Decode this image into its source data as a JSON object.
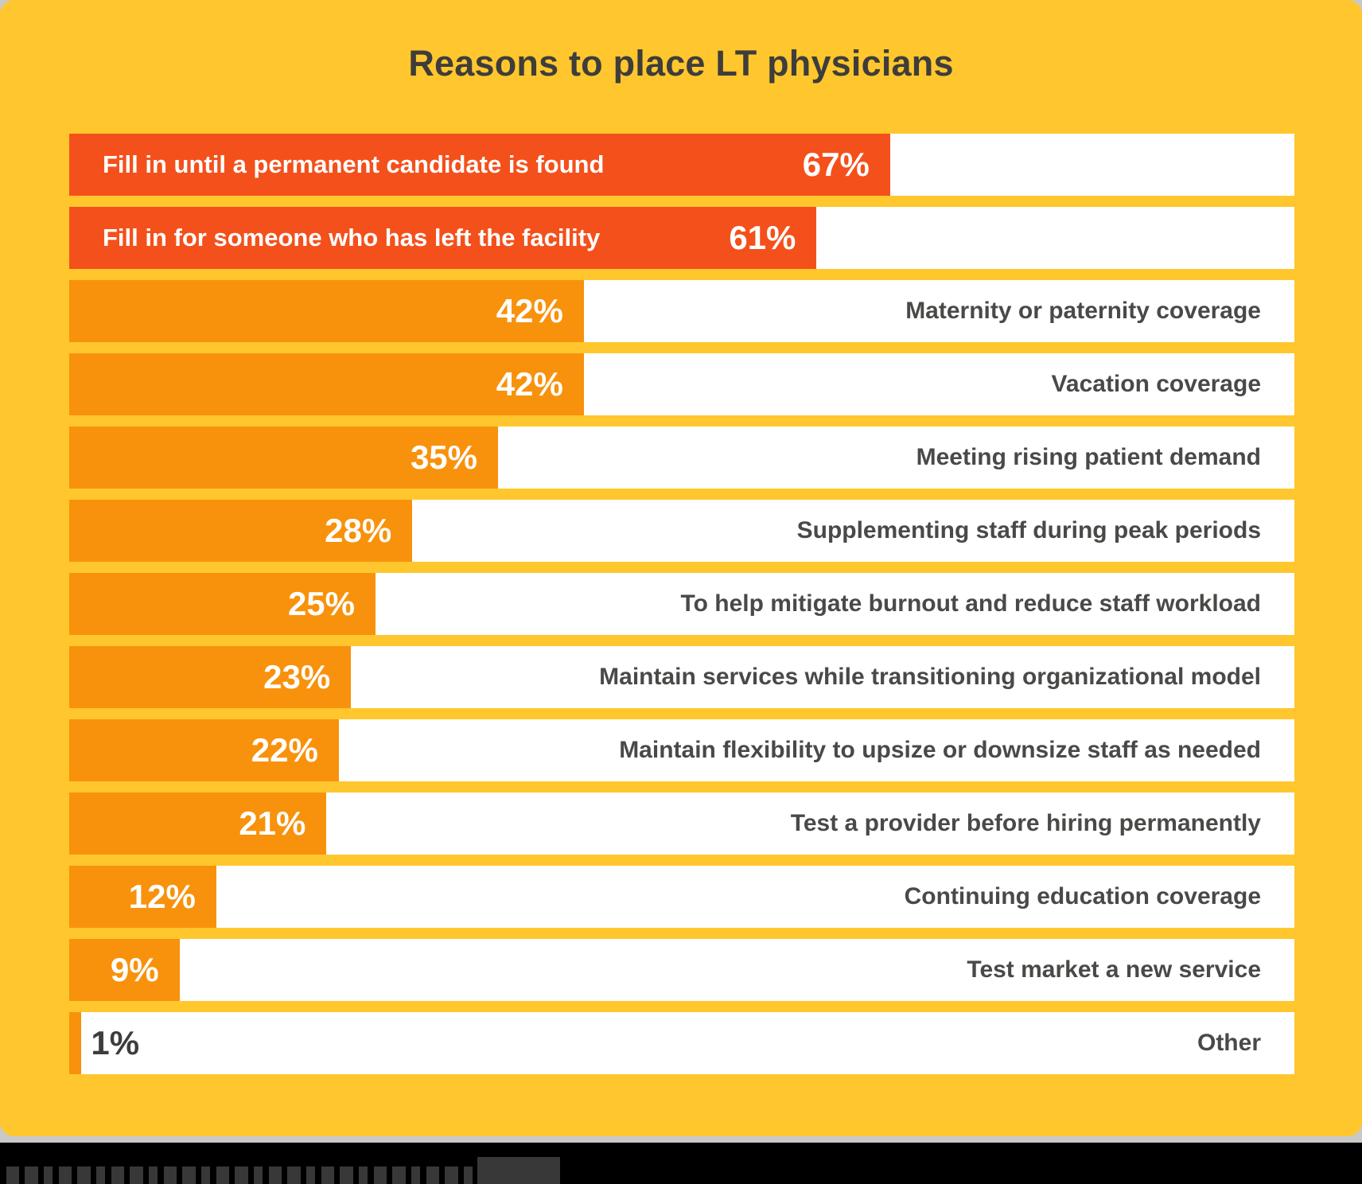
{
  "colors": {
    "page_background": "#c9c9c9",
    "card_background": "#ffc72d",
    "bar_highlight": "#f4501b",
    "bar_default": "#f8920c",
    "bar_track": "#ffffff",
    "value_text_on_bar": "#ffffff",
    "value_text_dark": "#3e3d3b",
    "category_text": "#4a4947",
    "title_text": "#3e3d3b",
    "footer_background": "#000000"
  },
  "chart_data": {
    "type": "bar",
    "orientation": "horizontal",
    "title": "Reasons to place LT physicians",
    "value_unit": "%",
    "xlim": [
      0,
      100
    ],
    "grid": false,
    "legend": false,
    "categories": [
      "Fill in until a permanent candidate is found",
      "Fill in for someone who has left the facility",
      "Maternity or paternity coverage",
      "Vacation coverage",
      "Meeting rising patient demand",
      "Supplementing staff during peak periods",
      "To help mitigate burnout and reduce staff workload",
      "Maintain services while transitioning organizational model",
      "Maintain flexibility to upsize or downsize staff as needed",
      "Test a provider before hiring permanently",
      "Continuing education coverage",
      "Test market a new service",
      "Other"
    ],
    "values": [
      67,
      61,
      42,
      42,
      35,
      28,
      25,
      23,
      22,
      21,
      12,
      9,
      1
    ],
    "rows": [
      {
        "label": "Fill in until a permanent candidate is found",
        "value": 67,
        "color": "bar_highlight",
        "label_placement": "inside-bar",
        "value_placement": "inside-bar"
      },
      {
        "label": "Fill in for someone who has left the facility",
        "value": 61,
        "color": "bar_highlight",
        "label_placement": "inside-bar",
        "value_placement": "inside-bar"
      },
      {
        "label": "Maternity or paternity coverage",
        "value": 42,
        "color": "bar_default",
        "label_placement": "right",
        "value_placement": "inside-bar"
      },
      {
        "label": "Vacation coverage",
        "value": 42,
        "color": "bar_default",
        "label_placement": "right",
        "value_placement": "inside-bar"
      },
      {
        "label": "Meeting rising patient demand",
        "value": 35,
        "color": "bar_default",
        "label_placement": "right",
        "value_placement": "inside-bar"
      },
      {
        "label": "Supplementing staff during peak periods",
        "value": 28,
        "color": "bar_default",
        "label_placement": "right",
        "value_placement": "inside-bar"
      },
      {
        "label": "To help mitigate burnout and reduce staff workload",
        "value": 25,
        "color": "bar_default",
        "label_placement": "right",
        "value_placement": "inside-bar"
      },
      {
        "label": "Maintain services while transitioning organizational model",
        "value": 23,
        "color": "bar_default",
        "label_placement": "right",
        "value_placement": "inside-bar"
      },
      {
        "label": "Maintain flexibility to upsize or downsize staff as needed",
        "value": 22,
        "color": "bar_default",
        "label_placement": "right",
        "value_placement": "inside-bar"
      },
      {
        "label": "Test a provider before hiring permanently",
        "value": 21,
        "color": "bar_default",
        "label_placement": "right",
        "value_placement": "inside-bar"
      },
      {
        "label": "Continuing education coverage",
        "value": 12,
        "color": "bar_default",
        "label_placement": "right",
        "value_placement": "inside-bar"
      },
      {
        "label": "Test market a new service",
        "value": 9,
        "color": "bar_default",
        "label_placement": "right",
        "value_placement": "inside-bar"
      },
      {
        "label": "Other",
        "value": 1,
        "color": "bar_default",
        "label_placement": "right",
        "value_placement": "outside"
      }
    ]
  }
}
